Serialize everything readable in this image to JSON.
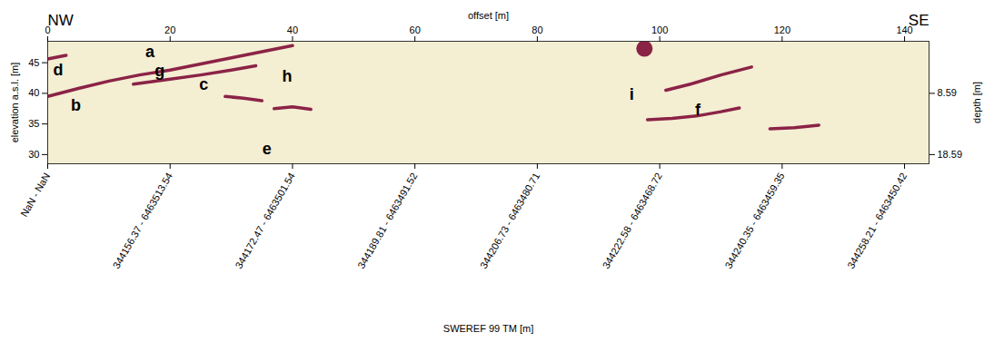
{
  "chart_data": {
    "type": "line",
    "corner_labels": [
      "NW",
      "SE"
    ],
    "x_label": "offset [m]",
    "y_label": "elevation a.s.l. [m]",
    "y2_label": "depth [m]",
    "x2_label": "SWEREF 99 TM [m]",
    "xlim": [
      0,
      144
    ],
    "xticks": [
      0,
      20,
      40,
      60,
      80,
      100,
      120,
      140
    ],
    "ylim": [
      28.5,
      48.5
    ],
    "yticks": [
      30,
      35,
      40,
      45
    ],
    "y2lim": [
      20.09,
      0.09
    ],
    "y2ticks": [
      8.59,
      18.59
    ],
    "x2ticks": [
      {
        "value": 0,
        "label": "NaN - NaN"
      },
      {
        "value": 20,
        "label": "344156.37 - 6463513.54"
      },
      {
        "value": 40,
        "label": "344172.47 - 6463501.54"
      },
      {
        "value": 60,
        "label": "344189.81 - 6463491.52"
      },
      {
        "value": 80,
        "label": "344206.73 - 6463480.71"
      },
      {
        "value": 100,
        "label": "344222.58 - 6463468.72"
      },
      {
        "value": 120,
        "label": "344240.35 - 6463459.35"
      },
      {
        "value": 140,
        "label": "344258.21 - 6463450.42"
      }
    ],
    "series": [
      {
        "color": "#8b2346",
        "x": [
          0,
          5,
          10,
          15,
          20,
          25,
          30,
          35,
          40
        ],
        "values": [
          39.5,
          40.8,
          42,
          43,
          43.8,
          44.8,
          45.8,
          46.8,
          47.8
        ]
      },
      {
        "color": "#8b2346",
        "x": [
          14,
          20,
          25,
          30,
          34
        ],
        "values": [
          41.5,
          42.3,
          43,
          43.8,
          44.5
        ]
      },
      {
        "color": "#8b2346",
        "x": [
          101,
          105,
          110,
          115
        ],
        "values": [
          40.5,
          41.5,
          43,
          44.3
        ]
      },
      {
        "color": "#8b2346",
        "x": [
          98,
          102,
          106,
          110,
          113
        ],
        "values": [
          35.7,
          35.9,
          36.3,
          37,
          37.6
        ]
      },
      {
        "color": "#8b2346",
        "x": [
          0,
          1.5,
          3
        ],
        "values": [
          45.6,
          45.9,
          46.2
        ]
      },
      {
        "color": "#8b2346",
        "x": [
          29,
          32,
          35
        ],
        "values": [
          39.5,
          39.2,
          38.8
        ]
      },
      {
        "color": "#8b2346",
        "x": [
          37,
          40,
          43
        ],
        "values": [
          37.5,
          37.8,
          37.4
        ]
      },
      {
        "color": "#8b2346",
        "x": [
          118,
          122,
          126
        ],
        "values": [
          34.2,
          34.4,
          34.8
        ]
      },
      {
        "type": "scatter",
        "marker": "circle",
        "color": "#8b2346",
        "x": [
          97.5
        ],
        "values": [
          47.3
        ]
      }
    ],
    "annotations": [
      {
        "text": "a",
        "x": 16.7,
        "y": 46.7
      },
      {
        "text": "b",
        "x": 4.6,
        "y": 38.0
      },
      {
        "text": "c",
        "x": 25.5,
        "y": 41.4
      },
      {
        "text": "d",
        "x": 1.7,
        "y": 43.8
      },
      {
        "text": "e",
        "x": 35.8,
        "y": 30.9
      },
      {
        "text": "f",
        "x": 106.2,
        "y": 37.3
      },
      {
        "text": "g",
        "x": 18.3,
        "y": 43.6
      },
      {
        "text": "h",
        "x": 39.1,
        "y": 42.7
      },
      {
        "text": "i",
        "x": 95.4,
        "y": 39.8
      }
    ]
  }
}
